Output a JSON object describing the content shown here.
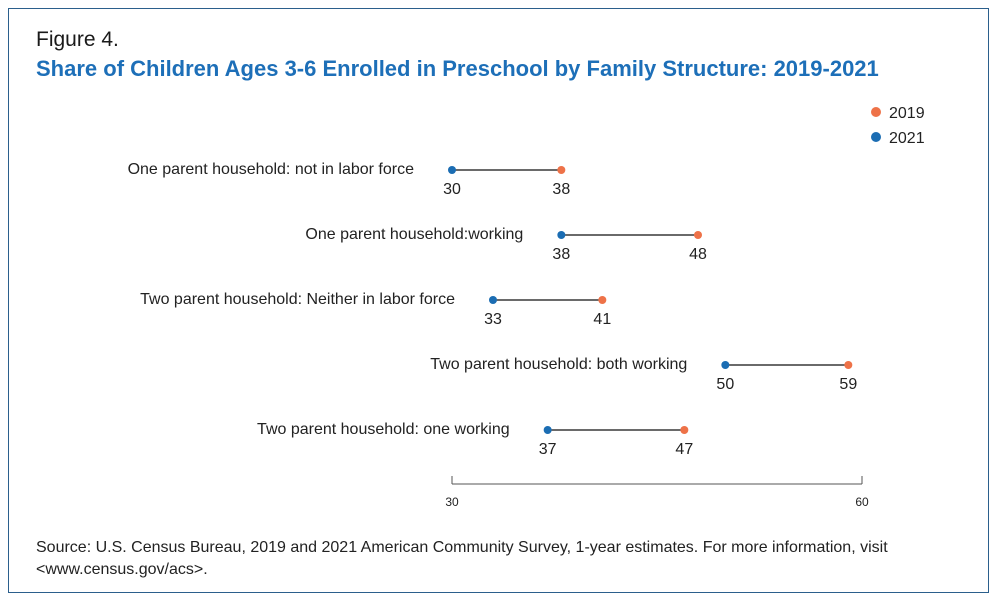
{
  "figure_label": "Figure 4.",
  "title": "Share of Children Ages 3-6 Enrolled in Preschool by Family Structure: 2019-2021",
  "source": "Source: U.S. Census Bureau, 2019 and 2021 American Community Survey, 1-year estimates. For more information, visit <www.census.gov/acs>.",
  "colors": {
    "y2019": "#ee7248",
    "y2021": "#1b6db3",
    "title": "#1d6fb8",
    "border": "#2b5f8c"
  },
  "chart_data": {
    "type": "dumbbell",
    "xlim": [
      30,
      60
    ],
    "x_ticks": [
      "30",
      "60"
    ],
    "legend": {
      "position": "top-right",
      "entries": [
        {
          "label": "2019",
          "color": "#ee7248"
        },
        {
          "label": "2021",
          "color": "#1b6db3"
        }
      ]
    },
    "categories": [
      "One parent household: not in labor force",
      "One parent household:working",
      "Two parent household: Neither in labor force",
      "Two parent household: both working",
      "Two parent household: one working"
    ],
    "series": [
      {
        "name": "2019",
        "values": [
          38,
          48,
          41,
          59,
          47
        ]
      },
      {
        "name": "2021",
        "values": [
          30,
          38,
          33,
          50,
          37
        ]
      }
    ]
  }
}
